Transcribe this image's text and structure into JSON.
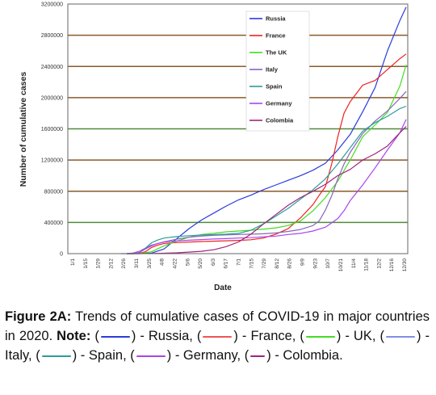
{
  "chart_data": {
    "type": "line",
    "title": "",
    "xlabel": "Date",
    "ylabel": "Number of cumulative cases",
    "ylim": [
      0,
      3200000
    ],
    "yticks": [
      "0",
      "400000",
      "800000",
      "1200000",
      "1600000",
      "2000000",
      "2400000",
      "2800000",
      "3200000"
    ],
    "xticks": [
      "1/1",
      "1/15",
      "1/29",
      "2/12",
      "2/26",
      "3/11",
      "3/25",
      "4/8",
      "4/22",
      "5/6",
      "5/20",
      "6/3",
      "6/17",
      "7/1",
      "7/15",
      "7/29",
      "8/12",
      "8/26",
      "9/9",
      "9/23",
      "10/7",
      "10/21",
      "11/4",
      "11/18",
      "12/2",
      "12/16",
      "12/30"
    ],
    "grid": true,
    "legend_position": "top-center",
    "series": [
      {
        "name": "Russia",
        "color": "#2b3bd8",
        "values": [
          [
            63,
            0
          ],
          [
            77,
            1000
          ],
          [
            91,
            7500
          ],
          [
            105,
            60000
          ],
          [
            119,
            190000
          ],
          [
            133,
            320000
          ],
          [
            147,
            430000
          ],
          [
            161,
            520000
          ],
          [
            175,
            610000
          ],
          [
            189,
            690000
          ],
          [
            203,
            750000
          ],
          [
            217,
            820000
          ],
          [
            231,
            880000
          ],
          [
            245,
            940000
          ],
          [
            259,
            1000000
          ],
          [
            273,
            1070000
          ],
          [
            287,
            1160000
          ],
          [
            301,
            1330000
          ],
          [
            315,
            1530000
          ],
          [
            329,
            1820000
          ],
          [
            343,
            2130000
          ],
          [
            357,
            2600000
          ],
          [
            371,
            2990000
          ],
          [
            378,
            3160000
          ]
        ]
      },
      {
        "name": "France",
        "color": "#ee2222",
        "values": [
          [
            63,
            0
          ],
          [
            70,
            100
          ],
          [
            77,
            2000
          ],
          [
            84,
            25000
          ],
          [
            91,
            80000
          ],
          [
            98,
            110000
          ],
          [
            105,
            130000
          ],
          [
            119,
            142000
          ],
          [
            147,
            155000
          ],
          [
            175,
            165000
          ],
          [
            189,
            170000
          ],
          [
            203,
            178000
          ],
          [
            217,
            200000
          ],
          [
            231,
            250000
          ],
          [
            245,
            320000
          ],
          [
            259,
            460000
          ],
          [
            273,
            630000
          ],
          [
            280,
            750000
          ],
          [
            287,
            860000
          ],
          [
            294,
            1150000
          ],
          [
            301,
            1500000
          ],
          [
            308,
            1800000
          ],
          [
            315,
            1950000
          ],
          [
            329,
            2160000
          ],
          [
            343,
            2220000
          ],
          [
            357,
            2360000
          ],
          [
            371,
            2500000
          ],
          [
            378,
            2560000
          ]
        ]
      },
      {
        "name": "The UK",
        "color": "#44dd22",
        "values": [
          [
            63,
            0
          ],
          [
            77,
            500
          ],
          [
            91,
            25000
          ],
          [
            105,
            100000
          ],
          [
            119,
            160000
          ],
          [
            133,
            210000
          ],
          [
            147,
            245000
          ],
          [
            161,
            260000
          ],
          [
            175,
            280000
          ],
          [
            189,
            290000
          ],
          [
            203,
            300000
          ],
          [
            217,
            315000
          ],
          [
            231,
            330000
          ],
          [
            245,
            360000
          ],
          [
            259,
            420000
          ],
          [
            273,
            550000
          ],
          [
            287,
            720000
          ],
          [
            301,
            930000
          ],
          [
            315,
            1200000
          ],
          [
            329,
            1500000
          ],
          [
            343,
            1650000
          ],
          [
            357,
            1810000
          ],
          [
            371,
            2150000
          ],
          [
            378,
            2420000
          ]
        ]
      },
      {
        "name": "Italy",
        "color": "#8866bb",
        "values": [
          [
            56,
            0
          ],
          [
            63,
            500
          ],
          [
            70,
            8000
          ],
          [
            77,
            30000
          ],
          [
            84,
            70000
          ],
          [
            91,
            110000
          ],
          [
            105,
            150000
          ],
          [
            119,
            185000
          ],
          [
            133,
            210000
          ],
          [
            147,
            225000
          ],
          [
            161,
            235000
          ],
          [
            175,
            240000
          ],
          [
            189,
            245000
          ],
          [
            203,
            250000
          ],
          [
            217,
            255000
          ],
          [
            231,
            265000
          ],
          [
            245,
            285000
          ],
          [
            259,
            310000
          ],
          [
            273,
            360000
          ],
          [
            280,
            420000
          ],
          [
            287,
            560000
          ],
          [
            294,
            740000
          ],
          [
            301,
            960000
          ],
          [
            308,
            1150000
          ],
          [
            315,
            1300000
          ],
          [
            329,
            1540000
          ],
          [
            343,
            1700000
          ],
          [
            357,
            1830000
          ],
          [
            371,
            1990000
          ],
          [
            378,
            2080000
          ]
        ]
      },
      {
        "name": "Spain",
        "color": "#2e9b9b",
        "values": [
          [
            63,
            0
          ],
          [
            70,
            200
          ],
          [
            77,
            8000
          ],
          [
            84,
            70000
          ],
          [
            91,
            140000
          ],
          [
            98,
            175000
          ],
          [
            105,
            200000
          ],
          [
            119,
            218000
          ],
          [
            133,
            230000
          ],
          [
            147,
            238000
          ],
          [
            161,
            243000
          ],
          [
            175,
            250000
          ],
          [
            189,
            260000
          ],
          [
            203,
            300000
          ],
          [
            217,
            380000
          ],
          [
            231,
            480000
          ],
          [
            245,
            580000
          ],
          [
            259,
            700000
          ],
          [
            273,
            820000
          ],
          [
            287,
            960000
          ],
          [
            301,
            1150000
          ],
          [
            315,
            1360000
          ],
          [
            329,
            1570000
          ],
          [
            343,
            1680000
          ],
          [
            357,
            1760000
          ],
          [
            371,
            1860000
          ],
          [
            378,
            1890000
          ]
        ]
      },
      {
        "name": "Germany",
        "color": "#aa44ee",
        "values": [
          [
            63,
            0
          ],
          [
            70,
            1000
          ],
          [
            77,
            15000
          ],
          [
            84,
            60000
          ],
          [
            91,
            100000
          ],
          [
            98,
            130000
          ],
          [
            105,
            150000
          ],
          [
            119,
            163000
          ],
          [
            133,
            172000
          ],
          [
            147,
            180000
          ],
          [
            161,
            187000
          ],
          [
            175,
            193000
          ],
          [
            189,
            200000
          ],
          [
            203,
            205000
          ],
          [
            217,
            215000
          ],
          [
            231,
            225000
          ],
          [
            245,
            245000
          ],
          [
            259,
            260000
          ],
          [
            273,
            290000
          ],
          [
            287,
            340000
          ],
          [
            301,
            450000
          ],
          [
            308,
            550000
          ],
          [
            315,
            680000
          ],
          [
            329,
            880000
          ],
          [
            343,
            1100000
          ],
          [
            357,
            1330000
          ],
          [
            371,
            1550000
          ],
          [
            378,
            1720000
          ]
        ]
      },
      {
        "name": "Colombia",
        "color": "#a0237e",
        "values": [
          [
            63,
            0
          ],
          [
            77,
            500
          ],
          [
            91,
            2000
          ],
          [
            105,
            5000
          ],
          [
            119,
            10000
          ],
          [
            133,
            20000
          ],
          [
            147,
            30000
          ],
          [
            161,
            50000
          ],
          [
            175,
            90000
          ],
          [
            189,
            150000
          ],
          [
            203,
            250000
          ],
          [
            217,
            380000
          ],
          [
            231,
            500000
          ],
          [
            245,
            620000
          ],
          [
            259,
            720000
          ],
          [
            273,
            800000
          ],
          [
            287,
            890000
          ],
          [
            301,
            1000000
          ],
          [
            315,
            1080000
          ],
          [
            329,
            1200000
          ],
          [
            343,
            1280000
          ],
          [
            357,
            1380000
          ],
          [
            371,
            1550000
          ],
          [
            378,
            1630000
          ]
        ]
      }
    ]
  },
  "caption": {
    "label": "Figure 2A:",
    "text": "Trends of cumulative cases of COVID-19 in major countries in 2020.",
    "note_label": "Note:",
    "items": [
      {
        "open": "(",
        "close": ") - Russia,",
        "color": "#2b3bd8"
      },
      {
        "open": "(",
        "close": ") - France,",
        "color": "#ee5555"
      },
      {
        "open": "(",
        "close": ") - UK,",
        "color": "#44dd22"
      },
      {
        "open": "(",
        "close": ") - Italy,",
        "color": "#7f8fe8"
      },
      {
        "open": "(",
        "close": ") - Spain,",
        "color": "#2e9b9b"
      },
      {
        "open": "(",
        "close": ") - Germany,",
        "color": "#aa44ee"
      },
      {
        "open": "(",
        "close": ") - Colombia.",
        "color": "#a0237e"
      }
    ]
  }
}
